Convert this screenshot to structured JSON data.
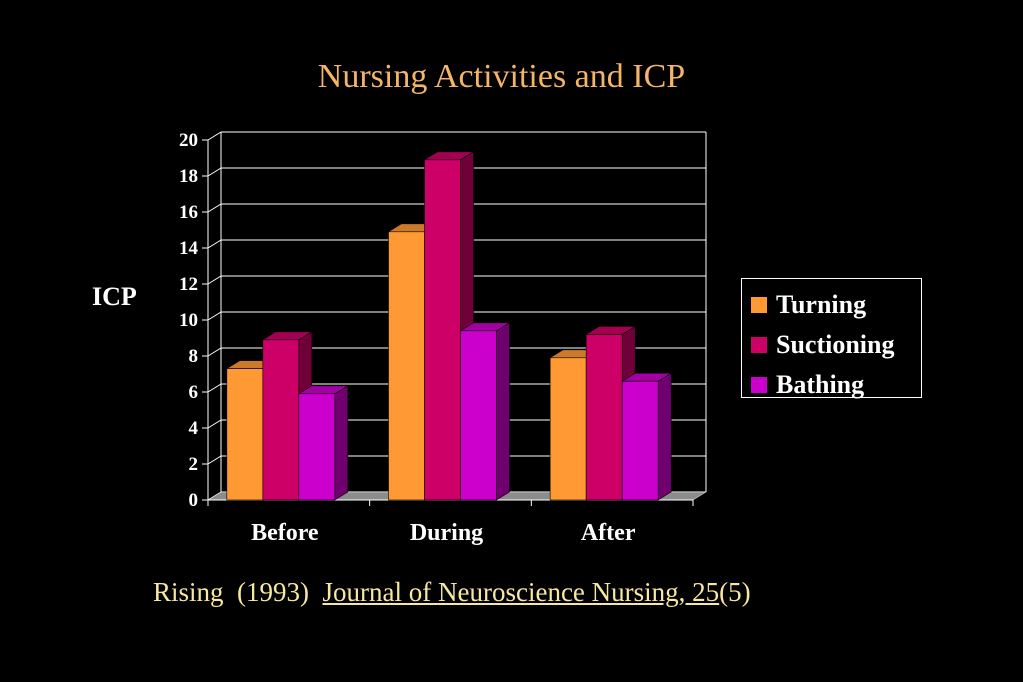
{
  "chart_data": {
    "type": "bar",
    "title": "Nursing Activities and ICP",
    "xlabel": "",
    "ylabel": "ICP",
    "categories": [
      "Before",
      "During",
      "After"
    ],
    "series": [
      {
        "name": "Turning",
        "values": [
          7.3,
          14.9,
          7.9
        ],
        "color": "#FF9933"
      },
      {
        "name": "Suctioning",
        "values": [
          8.9,
          18.9,
          9.2
        ],
        "color": "#CC0066"
      },
      {
        "name": "Bathing",
        "values": [
          5.9,
          9.4,
          6.6
        ],
        "color": "#CC00CC"
      }
    ],
    "ylim": [
      0,
      20
    ],
    "yticks": [
      0,
      2,
      4,
      6,
      8,
      10,
      12,
      14,
      16,
      18,
      20
    ],
    "grid": true,
    "legend_position": "right",
    "style": "3d-bar"
  },
  "citation": {
    "prefix": "Rising  (1993)  ",
    "journal": "Journal of Neuroscience Nursing, 25",
    "suffix": "(5)"
  }
}
